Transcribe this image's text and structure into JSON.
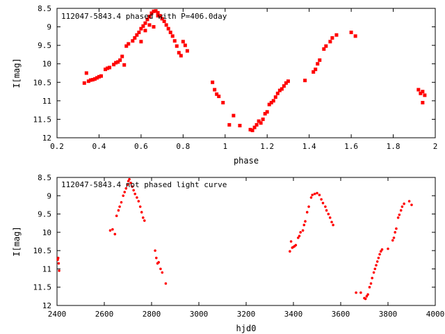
{
  "chart_data": [
    {
      "type": "scatter",
      "title": "112047-5843.4 phased with P=406.0day",
      "xlabel": "phase",
      "ylabel": "I[mag]",
      "xlim": [
        0.2,
        2.0
      ],
      "ylim": [
        12.0,
        8.5
      ],
      "y_inverted": true,
      "x_ticks": [
        "0.2",
        "0.4",
        "0.6",
        "0.8",
        "1",
        "1.2",
        "1.4",
        "1.6",
        "1.8",
        "2"
      ],
      "y_ticks": [
        "8.5",
        "9",
        "9.5",
        "10",
        "10.5",
        "11",
        "11.5",
        "12"
      ],
      "grid": false,
      "marker_color": "#ff0000",
      "points": [
        [
          0.33,
          10.52
        ],
        [
          0.34,
          10.25
        ],
        [
          0.35,
          10.47
        ],
        [
          0.36,
          10.44
        ],
        [
          0.37,
          10.43
        ],
        [
          0.38,
          10.41
        ],
        [
          0.39,
          10.38
        ],
        [
          0.4,
          10.35
        ],
        [
          0.41,
          10.33
        ],
        [
          0.43,
          10.15
        ],
        [
          0.44,
          10.12
        ],
        [
          0.45,
          10.1
        ],
        [
          0.47,
          10.02
        ],
        [
          0.48,
          9.97
        ],
        [
          0.49,
          9.95
        ],
        [
          0.5,
          9.9
        ],
        [
          0.51,
          9.8
        ],
        [
          0.52,
          10.03
        ],
        [
          0.53,
          9.52
        ],
        [
          0.54,
          9.46
        ],
        [
          0.56,
          9.38
        ],
        [
          0.57,
          9.3
        ],
        [
          0.58,
          9.22
        ],
        [
          0.59,
          9.15
        ],
        [
          0.6,
          9.05
        ],
        [
          0.61,
          8.98
        ],
        [
          0.62,
          8.9
        ],
        [
          0.63,
          8.8
        ],
        [
          0.64,
          8.72
        ],
        [
          0.65,
          8.63
        ],
        [
          0.66,
          8.58
        ],
        [
          0.67,
          8.57
        ],
        [
          0.68,
          8.62
        ],
        [
          0.69,
          8.7
        ],
        [
          0.7,
          8.78
        ],
        [
          0.71,
          8.85
        ],
        [
          0.72,
          8.95
        ],
        [
          0.73,
          9.05
        ],
        [
          0.74,
          9.15
        ],
        [
          0.75,
          9.25
        ],
        [
          0.76,
          9.38
        ],
        [
          0.77,
          9.52
        ],
        [
          0.78,
          9.7
        ],
        [
          0.79,
          9.78
        ],
        [
          0.8,
          9.4
        ],
        [
          0.81,
          9.5
        ],
        [
          0.82,
          9.65
        ],
        [
          0.6,
          9.4
        ],
        [
          0.62,
          9.1
        ],
        [
          0.64,
          8.95
        ],
        [
          0.66,
          9.0
        ],
        [
          0.68,
          8.7
        ],
        [
          0.94,
          10.5
        ],
        [
          0.95,
          10.7
        ],
        [
          0.96,
          10.82
        ],
        [
          0.97,
          10.88
        ],
        [
          0.99,
          11.05
        ],
        [
          1.02,
          11.65
        ],
        [
          1.04,
          11.4
        ],
        [
          1.07,
          11.67
        ],
        [
          1.12,
          11.78
        ],
        [
          1.13,
          11.8
        ],
        [
          1.14,
          11.72
        ],
        [
          1.15,
          11.65
        ],
        [
          1.16,
          11.55
        ],
        [
          1.17,
          11.6
        ],
        [
          1.18,
          11.5
        ],
        [
          1.19,
          11.35
        ],
        [
          1.2,
          11.3
        ],
        [
          1.21,
          11.1
        ],
        [
          1.22,
          11.05
        ],
        [
          1.23,
          11.0
        ],
        [
          1.24,
          10.9
        ],
        [
          1.25,
          10.8
        ],
        [
          1.26,
          10.72
        ],
        [
          1.27,
          10.68
        ],
        [
          1.28,
          10.6
        ],
        [
          1.29,
          10.52
        ],
        [
          1.3,
          10.47
        ],
        [
          1.38,
          10.45
        ],
        [
          1.42,
          10.22
        ],
        [
          1.43,
          10.15
        ],
        [
          1.44,
          10.0
        ],
        [
          1.45,
          9.9
        ],
        [
          1.47,
          9.6
        ],
        [
          1.48,
          9.52
        ],
        [
          1.5,
          9.4
        ],
        [
          1.51,
          9.3
        ],
        [
          1.53,
          9.22
        ],
        [
          1.6,
          9.15
        ],
        [
          1.62,
          9.25
        ],
        [
          1.92,
          10.7
        ],
        [
          1.93,
          10.8
        ],
        [
          1.94,
          10.75
        ],
        [
          1.94,
          11.05
        ],
        [
          1.95,
          10.85
        ]
      ]
    },
    {
      "type": "scatter",
      "title": "112047-5843.4 not phased light curve",
      "xlabel": "hjd0",
      "ylabel": "I[mag]",
      "xlim": [
        2400,
        4000
      ],
      "ylim": [
        12.0,
        8.5
      ],
      "y_inverted": true,
      "x_ticks": [
        "2400",
        "2600",
        "2800",
        "3000",
        "3200",
        "3400",
        "3600",
        "3800",
        "4000"
      ],
      "y_ticks": [
        "8.5",
        "9",
        "9.5",
        "10",
        "10.5",
        "11",
        "11.5",
        "12"
      ],
      "grid": false,
      "marker_color": "#ff0000",
      "points": [
        [
          2403,
          10.75
        ],
        [
          2405,
          10.7
        ],
        [
          2407,
          10.85
        ],
        [
          2409,
          11.05
        ],
        [
          2625,
          9.95
        ],
        [
          2635,
          9.92
        ],
        [
          2645,
          10.05
        ],
        [
          2652,
          9.55
        ],
        [
          2660,
          9.4
        ],
        [
          2665,
          9.3
        ],
        [
          2672,
          9.18
        ],
        [
          2680,
          9.0
        ],
        [
          2686,
          8.9
        ],
        [
          2692,
          8.8
        ],
        [
          2698,
          8.7
        ],
        [
          2702,
          8.6
        ],
        [
          2706,
          8.55
        ],
        [
          2712,
          8.65
        ],
        [
          2718,
          8.75
        ],
        [
          2724,
          8.85
        ],
        [
          2730,
          8.95
        ],
        [
          2738,
          9.05
        ],
        [
          2745,
          9.15
        ],
        [
          2752,
          9.3
        ],
        [
          2758,
          9.45
        ],
        [
          2764,
          9.6
        ],
        [
          2770,
          9.68
        ],
        [
          2815,
          10.5
        ],
        [
          2820,
          10.7
        ],
        [
          2825,
          10.85
        ],
        [
          2830,
          10.82
        ],
        [
          2838,
          11.0
        ],
        [
          2845,
          11.1
        ],
        [
          2860,
          11.4
        ],
        [
          3385,
          10.52
        ],
        [
          3390,
          10.25
        ],
        [
          3395,
          10.42
        ],
        [
          3400,
          10.4
        ],
        [
          3405,
          10.38
        ],
        [
          3410,
          10.35
        ],
        [
          3420,
          10.15
        ],
        [
          3425,
          10.1
        ],
        [
          3430,
          10.0
        ],
        [
          3440,
          9.95
        ],
        [
          3445,
          9.8
        ],
        [
          3450,
          9.7
        ],
        [
          3458,
          9.45
        ],
        [
          3465,
          9.3
        ],
        [
          3475,
          9.05
        ],
        [
          3480,
          8.98
        ],
        [
          3490,
          8.95
        ],
        [
          3500,
          8.93
        ],
        [
          3510,
          8.98
        ],
        [
          3518,
          9.1
        ],
        [
          3525,
          9.2
        ],
        [
          3535,
          9.3
        ],
        [
          3540,
          9.4
        ],
        [
          3548,
          9.5
        ],
        [
          3555,
          9.6
        ],
        [
          3562,
          9.72
        ],
        [
          3568,
          9.8
        ],
        [
          3665,
          11.65
        ],
        [
          3685,
          11.65
        ],
        [
          3700,
          11.8
        ],
        [
          3705,
          11.82
        ],
        [
          3710,
          11.75
        ],
        [
          3715,
          11.7
        ],
        [
          3722,
          11.5
        ],
        [
          3728,
          11.4
        ],
        [
          3733,
          11.25
        ],
        [
          3740,
          11.1
        ],
        [
          3745,
          11.0
        ],
        [
          3750,
          10.9
        ],
        [
          3755,
          10.8
        ],
        [
          3760,
          10.7
        ],
        [
          3765,
          10.6
        ],
        [
          3770,
          10.52
        ],
        [
          3775,
          10.47
        ],
        [
          3800,
          10.45
        ],
        [
          3820,
          10.22
        ],
        [
          3825,
          10.15
        ],
        [
          3830,
          10.0
        ],
        [
          3835,
          9.9
        ],
        [
          3843,
          9.6
        ],
        [
          3848,
          9.52
        ],
        [
          3855,
          9.4
        ],
        [
          3860,
          9.3
        ],
        [
          3868,
          9.22
        ],
        [
          3890,
          9.15
        ],
        [
          3900,
          9.25
        ]
      ]
    }
  ]
}
